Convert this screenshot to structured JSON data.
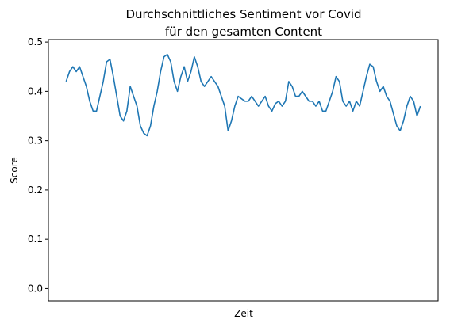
{
  "chart_data": {
    "type": "line",
    "title": [
      "Durchschnittliches Sentiment vor Covid",
      "für den gesamten Content"
    ],
    "xlabel": "Zeit",
    "ylabel": "Score",
    "ylim": [
      -0.025,
      0.505
    ],
    "xlim": [
      -10.5,
      220.5
    ],
    "yticks": [
      0.0,
      0.1,
      0.2,
      0.3,
      0.4,
      0.5
    ],
    "ytick_labels": [
      "0.0",
      "0.1",
      "0.2",
      "0.3",
      "0.4",
      "0.5"
    ],
    "xticks_visible": false,
    "grid": false,
    "legend": "none",
    "color": "#1f77b4",
    "series": [
      {
        "x": [
          0,
          2,
          4,
          6,
          8,
          10,
          12,
          14,
          16,
          18,
          20,
          22,
          24,
          26,
          28,
          30,
          32,
          34,
          36,
          38,
          40,
          42,
          44,
          46,
          48,
          50,
          52,
          54,
          56,
          58,
          60,
          62,
          64,
          66,
          68,
          70,
          72,
          74,
          76,
          78,
          80,
          82,
          84,
          86,
          88,
          90,
          92,
          94,
          96,
          98,
          100,
          102,
          104,
          106,
          108,
          110,
          112,
          114,
          116,
          118,
          120,
          122,
          124,
          126,
          128,
          130,
          132,
          134,
          136,
          138,
          140,
          142,
          144,
          146,
          148,
          150,
          152,
          154,
          156,
          158,
          160,
          162,
          164,
          166,
          168,
          170,
          172,
          174,
          176,
          178,
          180,
          182,
          184,
          186,
          188,
          190,
          192,
          194,
          196,
          198,
          200,
          202,
          204,
          206,
          208,
          210
        ],
        "values": [
          0.42,
          0.44,
          0.45,
          0.44,
          0.45,
          0.43,
          0.41,
          0.38,
          0.36,
          0.36,
          0.39,
          0.42,
          0.46,
          0.465,
          0.43,
          0.39,
          0.35,
          0.34,
          0.36,
          0.41,
          0.39,
          0.37,
          0.33,
          0.315,
          0.31,
          0.33,
          0.37,
          0.4,
          0.44,
          0.47,
          0.475,
          0.46,
          0.42,
          0.4,
          0.43,
          0.45,
          0.42,
          0.44,
          0.47,
          0.45,
          0.42,
          0.41,
          0.42,
          0.43,
          0.42,
          0.41,
          0.39,
          0.37,
          0.32,
          0.34,
          0.37,
          0.39,
          0.385,
          0.38,
          0.38,
          0.39,
          0.38,
          0.37,
          0.38,
          0.39,
          0.37,
          0.36,
          0.375,
          0.38,
          0.37,
          0.38,
          0.42,
          0.41,
          0.39,
          0.39,
          0.4,
          0.39,
          0.38,
          0.38,
          0.37,
          0.38,
          0.36,
          0.36,
          0.38,
          0.4,
          0.43,
          0.42,
          0.38,
          0.37,
          0.38,
          0.36,
          0.38,
          0.37,
          0.4,
          0.43,
          0.455,
          0.45,
          0.42,
          0.4,
          0.41,
          0.39,
          0.38,
          0.355,
          0.33,
          0.32,
          0.34,
          0.37,
          0.39,
          0.38,
          0.35,
          0.37
        ]
      }
    ]
  }
}
